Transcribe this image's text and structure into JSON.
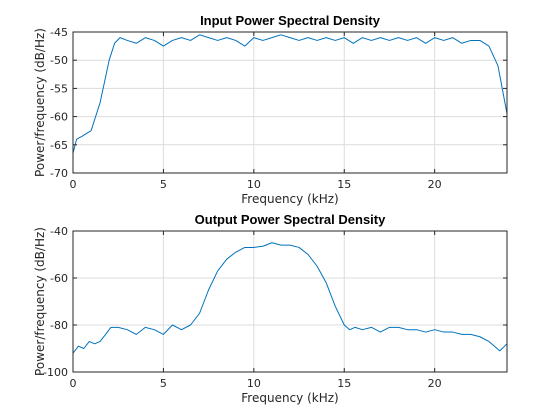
{
  "chart_data": [
    {
      "type": "line",
      "title": "Input Power Spectral Density",
      "xlabel": "Frequency (kHz)",
      "ylabel": "Power/frequency (dB/Hz)",
      "xlim": [
        0,
        24
      ],
      "ylim": [
        -70,
        -45
      ],
      "xticks": [
        0,
        5,
        10,
        15,
        20
      ],
      "yticks": [
        -70,
        -65,
        -60,
        -55,
        -50,
        -45
      ],
      "grid": true,
      "color": "#0072bd",
      "x": [
        0,
        0.2,
        0.5,
        1.0,
        1.5,
        2.0,
        2.3,
        2.6,
        3.0,
        3.5,
        4.0,
        4.5,
        5.0,
        5.5,
        6.0,
        6.5,
        7.0,
        7.5,
        8.0,
        8.5,
        9.0,
        9.5,
        10.0,
        10.5,
        11.0,
        11.5,
        12.0,
        12.5,
        13.0,
        13.5,
        14.0,
        14.5,
        15.0,
        15.5,
        16.0,
        16.5,
        17.0,
        17.5,
        18.0,
        18.5,
        19.0,
        19.5,
        20.0,
        20.5,
        21.0,
        21.5,
        22.0,
        22.5,
        23.0,
        23.5,
        24.0
      ],
      "y": [
        -66.5,
        -64.0,
        -63.5,
        -62.5,
        -57.5,
        -50.0,
        -47.0,
        -46.0,
        -46.5,
        -47.0,
        -46.0,
        -46.5,
        -47.5,
        -46.5,
        -46.0,
        -46.5,
        -45.5,
        -46.0,
        -46.5,
        -46.0,
        -46.5,
        -47.5,
        -46.0,
        -46.5,
        -46.0,
        -45.5,
        -46.0,
        -46.5,
        -46.0,
        -46.5,
        -46.0,
        -46.5,
        -46.0,
        -47.0,
        -46.0,
        -46.5,
        -46.0,
        -46.5,
        -46.0,
        -46.5,
        -46.0,
        -47.0,
        -46.0,
        -46.5,
        -46.0,
        -47.0,
        -46.5,
        -46.5,
        -47.5,
        -51.0,
        -59.5
      ]
    },
    {
      "type": "line",
      "title": "Output Power Spectral Density",
      "xlabel": "Frequency (kHz)",
      "ylabel": "Power/frequency (dB/Hz)",
      "xlim": [
        0,
        24
      ],
      "ylim": [
        -100,
        -40
      ],
      "xticks": [
        0,
        5,
        10,
        15,
        20
      ],
      "yticks": [
        -100,
        -80,
        -60,
        -40
      ],
      "grid": true,
      "color": "#0072bd",
      "x": [
        0,
        0.3,
        0.6,
        0.9,
        1.2,
        1.5,
        1.8,
        2.1,
        2.5,
        3.0,
        3.5,
        4.0,
        4.5,
        5.0,
        5.5,
        6.0,
        6.5,
        7.0,
        7.5,
        8.0,
        8.5,
        9.0,
        9.5,
        10.0,
        10.5,
        11.0,
        11.5,
        12.0,
        12.5,
        13.0,
        13.5,
        14.0,
        14.5,
        15.0,
        15.3,
        15.6,
        16.0,
        16.5,
        17.0,
        17.5,
        18.0,
        18.5,
        19.0,
        19.5,
        20.0,
        20.5,
        21.0,
        21.5,
        22.0,
        22.5,
        23.0,
        23.3,
        23.6,
        24.0
      ],
      "y": [
        -92,
        -89,
        -90,
        -87,
        -88,
        -87,
        -84,
        -81,
        -81,
        -82,
        -84,
        -81,
        -82,
        -84,
        -80,
        -82,
        -80,
        -75,
        -65,
        -57,
        -52,
        -49,
        -47,
        -47,
        -46.5,
        -45,
        -46,
        -46,
        -47,
        -50,
        -55,
        -62,
        -72,
        -80,
        -82,
        -81,
        -82,
        -81,
        -83,
        -81,
        -81,
        -82,
        -82,
        -83,
        -82,
        -83,
        -83,
        -84,
        -84,
        -85,
        -87,
        -89,
        -91,
        -88
      ]
    }
  ]
}
